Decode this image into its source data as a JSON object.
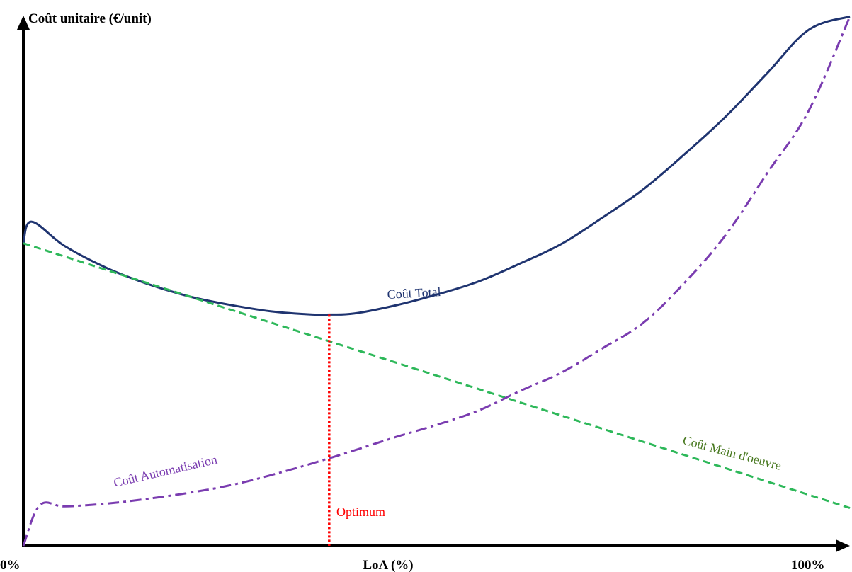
{
  "chart_data": {
    "type": "line",
    "title": "",
    "ylabel": "Coût unitaire (€/unit)",
    "xlabel": "LoA (%)",
    "x_tick_labels": [
      "0%",
      "100%"
    ],
    "xlim": [
      0,
      100
    ],
    "ylim": [
      0,
      100
    ],
    "grid": false,
    "series": [
      {
        "name": "Coût Total",
        "style": "solid",
        "color": "#1f3470",
        "x": [
          0,
          1,
          5,
          10,
          15,
          20,
          25,
          30,
          35,
          37,
          40,
          45,
          50,
          55,
          60,
          65,
          70,
          75,
          80,
          85,
          90,
          95,
          100
        ],
        "y": [
          56,
          60,
          55.5,
          51.5,
          48.5,
          46.2,
          44.6,
          43.4,
          42.8,
          42.8,
          43,
          44.5,
          46.5,
          48.9,
          52.2,
          55.8,
          60.7,
          66,
          72.5,
          79.5,
          87.5,
          95.5,
          98
        ]
      },
      {
        "name": "Coût Main d'oeuvre",
        "style": "dashed",
        "color": "#2eb85a",
        "x": [
          0,
          100
        ],
        "y": [
          56,
          7
        ]
      },
      {
        "name": "Coût Automatisation",
        "style": "dashdot",
        "color": "#7a3cb0",
        "x": [
          0,
          2,
          5,
          10,
          15,
          20,
          25,
          30,
          37,
          45,
          50,
          55,
          60,
          65,
          70,
          75,
          80,
          85,
          90,
          95,
          100
        ],
        "y": [
          0,
          7.5,
          7.3,
          7.8,
          8.7,
          9.8,
          11.2,
          13.1,
          16.2,
          20.1,
          22.4,
          25,
          28.6,
          32,
          36.5,
          41.3,
          48.7,
          57.6,
          69,
          80.5,
          98
        ]
      }
    ],
    "annotations": [
      {
        "text": "Optimum",
        "x": 37,
        "color": "#ff0000"
      }
    ]
  },
  "labels": {
    "total": "Coût Total",
    "labor": "Coût Main d'oeuvre",
    "automation": "Coût Automatisation",
    "optimum": "Optimum"
  },
  "colors": {
    "total": "#1f3470",
    "labor": "#2eb85a",
    "automation": "#7a3cb0",
    "optimum": "#ff0000",
    "labor_label": "#4a7a22",
    "axis": "#000000"
  }
}
